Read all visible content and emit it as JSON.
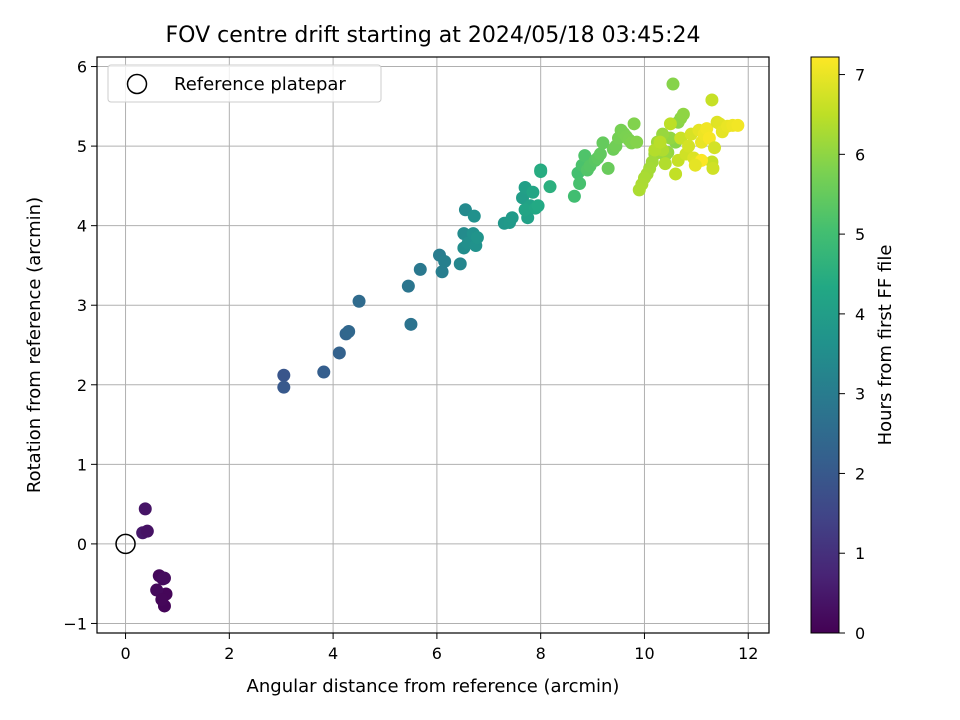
{
  "chart_data": {
    "type": "scatter",
    "title": "FOV centre drift starting at 2024/05/18 03:45:24",
    "xlabel": "Angular distance from reference (arcmin)",
    "ylabel": "Rotation from reference (arcmin)",
    "xlim": [
      -0.55,
      12.4
    ],
    "ylim": [
      -1.12,
      6.12
    ],
    "xticks": [
      0,
      2,
      4,
      6,
      8,
      10,
      12
    ],
    "xtick_labels": [
      "0",
      "2",
      "4",
      "6",
      "8",
      "10",
      "12"
    ],
    "yticks": [
      -1,
      0,
      1,
      2,
      3,
      4,
      5,
      6
    ],
    "ytick_labels": [
      "−1",
      "0",
      "1",
      "2",
      "3",
      "4",
      "5",
      "6"
    ],
    "grid": true,
    "legend": {
      "position": "top-left",
      "entries": [
        "Reference platepar"
      ]
    },
    "reference_point": {
      "label": "Reference platepar",
      "x": 0,
      "y": 0,
      "marker": "open-circle"
    },
    "colorbar": {
      "label": "Hours from first FF file",
      "colormap": "viridis",
      "range": [
        0,
        7.22
      ],
      "ticks": [
        0,
        1,
        2,
        3,
        4,
        5,
        6,
        7
      ],
      "tick_labels": [
        "0",
        "1",
        "2",
        "3",
        "4",
        "5",
        "6",
        "7"
      ]
    },
    "series": [
      {
        "x": [
          0.38,
          0.33,
          0.42,
          0.65,
          0.72,
          0.78,
          0.6,
          0.75,
          0.7,
          0.75,
          3.05,
          3.05,
          3.82,
          4.12,
          4.25,
          4.3,
          4.5,
          5.5,
          5.45,
          5.68,
          6.05,
          6.1,
          6.15,
          6.45,
          6.55,
          6.52,
          6.52,
          6.6,
          6.7,
          6.72,
          6.75,
          6.78,
          7.3,
          7.4,
          7.45,
          7.65,
          7.7,
          7.75,
          7.8,
          7.7,
          7.85,
          7.9,
          7.95,
          8.0,
          8.0,
          8.18,
          8.65,
          8.72,
          8.75,
          8.8,
          8.85,
          8.9,
          8.95,
          9.05,
          9.1,
          9.15,
          9.2,
          9.3,
          9.4,
          9.45,
          9.5,
          9.55,
          9.6,
          9.65,
          9.7,
          9.75,
          9.8,
          9.85,
          10.55,
          10.6,
          10.65,
          10.7,
          10.75,
          10.5,
          10.45,
          10.4,
          10.35,
          10.3,
          10.2,
          10.25,
          10.15,
          10.1,
          10.05,
          10.0,
          9.95,
          9.9,
          10.35,
          10.4,
          10.2,
          10.3,
          10.5,
          10.6,
          10.65,
          10.7,
          10.8,
          10.85,
          10.9,
          10.95,
          11.0,
          11.05,
          11.1,
          11.15,
          11.2,
          11.25,
          11.3,
          11.32,
          11.35,
          11.4,
          11.45,
          11.5,
          11.6,
          11.7,
          11.8,
          11.1,
          11.3,
          10.98
        ],
        "y": [
          0.44,
          0.14,
          0.16,
          -0.4,
          -0.44,
          -0.63,
          -0.58,
          -0.78,
          -0.7,
          -0.43,
          2.12,
          1.97,
          2.16,
          2.4,
          2.64,
          2.67,
          3.05,
          2.76,
          3.24,
          3.45,
          3.63,
          3.42,
          3.55,
          3.52,
          4.2,
          3.9,
          3.72,
          3.78,
          3.9,
          4.12,
          3.75,
          3.85,
          4.03,
          4.04,
          4.1,
          4.35,
          4.48,
          4.1,
          4.25,
          4.2,
          4.42,
          4.22,
          4.25,
          4.7,
          4.68,
          4.49,
          4.37,
          4.66,
          4.53,
          4.76,
          4.88,
          4.7,
          4.75,
          4.82,
          4.85,
          4.9,
          5.04,
          4.72,
          4.96,
          5.0,
          5.1,
          5.2,
          5.16,
          5.12,
          5.08,
          5.04,
          5.28,
          5.05,
          5.78,
          5.05,
          5.3,
          5.35,
          5.4,
          5.1,
          4.92,
          4.88,
          5.15,
          5.0,
          4.9,
          5.05,
          4.8,
          4.72,
          4.65,
          4.6,
          4.52,
          4.45,
          4.95,
          4.78,
          4.95,
          5.05,
          5.28,
          4.65,
          4.82,
          5.1,
          4.9,
          5.0,
          5.15,
          4.85,
          4.8,
          5.2,
          5.05,
          5.15,
          5.22,
          5.1,
          4.8,
          4.72,
          4.98,
          5.3,
          5.28,
          5.18,
          5.25,
          5.26,
          5.26,
          4.82,
          5.58,
          4.76
        ],
        "hours": [
          0.4,
          0.45,
          0.35,
          0.15,
          0.2,
          0.1,
          0.18,
          0.08,
          0.12,
          0.22,
          1.9,
          2.0,
          2.15,
          2.25,
          2.35,
          2.4,
          2.5,
          2.75,
          2.8,
          2.9,
          3.0,
          3.05,
          3.1,
          3.3,
          3.4,
          3.45,
          3.5,
          3.55,
          3.6,
          3.62,
          3.65,
          3.7,
          3.8,
          3.85,
          3.9,
          4.0,
          4.05,
          4.1,
          4.15,
          4.2,
          4.25,
          4.3,
          4.35,
          4.4,
          4.45,
          4.55,
          5.0,
          5.05,
          5.1,
          5.15,
          5.2,
          5.25,
          5.3,
          5.35,
          5.4,
          5.45,
          5.5,
          5.55,
          5.6,
          5.65,
          5.7,
          5.72,
          5.75,
          5.78,
          5.8,
          5.82,
          5.85,
          5.88,
          5.9,
          5.92,
          5.95,
          5.97,
          6.0,
          6.02,
          6.05,
          6.08,
          6.1,
          6.12,
          6.15,
          6.18,
          6.2,
          6.22,
          6.25,
          6.28,
          6.3,
          6.32,
          6.35,
          6.38,
          6.4,
          6.45,
          6.5,
          6.55,
          6.6,
          6.65,
          6.7,
          6.75,
          6.8,
          6.85,
          6.9,
          6.95,
          7.0,
          7.05,
          7.1,
          7.15,
          6.6,
          6.7,
          6.75,
          6.85,
          6.9,
          6.95,
          7.0,
          7.05,
          7.1,
          7.2,
          6.6,
          6.95
        ]
      }
    ]
  }
}
